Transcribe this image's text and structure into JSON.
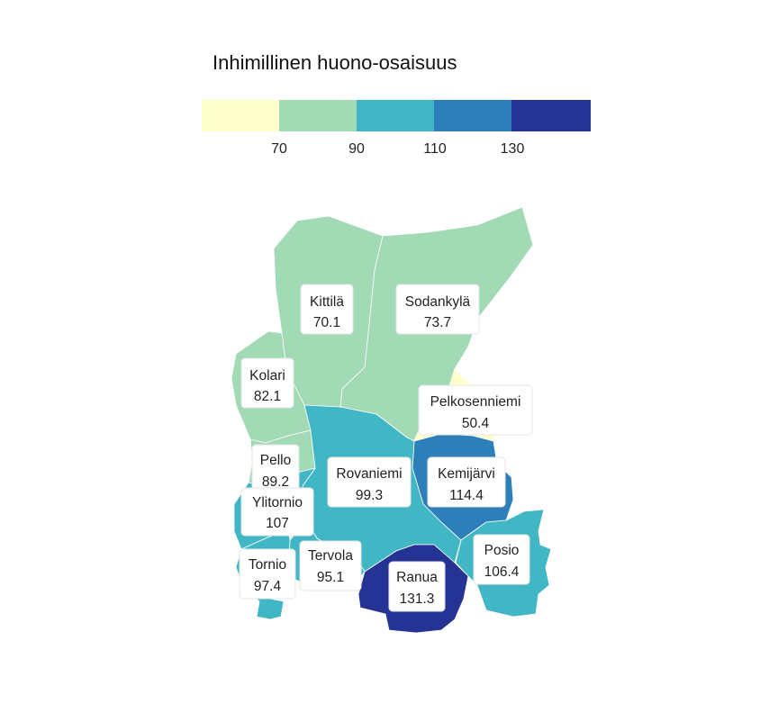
{
  "legend": {
    "title": "Inhimillinen huono-osaisuus",
    "colors": [
      "#ffffcc",
      "#a1dab4",
      "#41b6c4",
      "#2c7fb8",
      "#253494"
    ],
    "breaks": [
      "70",
      "90",
      "110",
      "130"
    ]
  },
  "municipalities": [
    {
      "id": "kittila",
      "name": "Kittilä",
      "value": "70.1",
      "color": "#a1dab4"
    },
    {
      "id": "sodankyla",
      "name": "Sodankylä",
      "value": "73.7",
      "color": "#a1dab4"
    },
    {
      "id": "kolari",
      "name": "Kolari",
      "value": "82.1",
      "color": "#a1dab4"
    },
    {
      "id": "pelkosenniemi",
      "name": "Pelkosenniemi",
      "value": "50.4",
      "color": "#ffffcc"
    },
    {
      "id": "pello",
      "name": "Pello",
      "value": "89.2",
      "color": "#a1dab4"
    },
    {
      "id": "rovaniemi",
      "name": "Rovaniemi",
      "value": "99.3",
      "color": "#41b6c4"
    },
    {
      "id": "kemijarvi",
      "name": "Kemijärvi",
      "value": "114.4",
      "color": "#2c7fb8"
    },
    {
      "id": "ylitornio",
      "name": "Ylitornio",
      "value": "107",
      "color": "#41b6c4"
    },
    {
      "id": "tervola",
      "name": "Tervola",
      "value": "95.1",
      "color": "#41b6c4"
    },
    {
      "id": "tornio",
      "name": "Tornio",
      "value": "97.4",
      "color": "#41b6c4"
    },
    {
      "id": "posio",
      "name": "Posio",
      "value": "106.4",
      "color": "#41b6c4"
    },
    {
      "id": "ranua",
      "name": "Ranua",
      "value": "131.3",
      "color": "#253494"
    }
  ]
}
